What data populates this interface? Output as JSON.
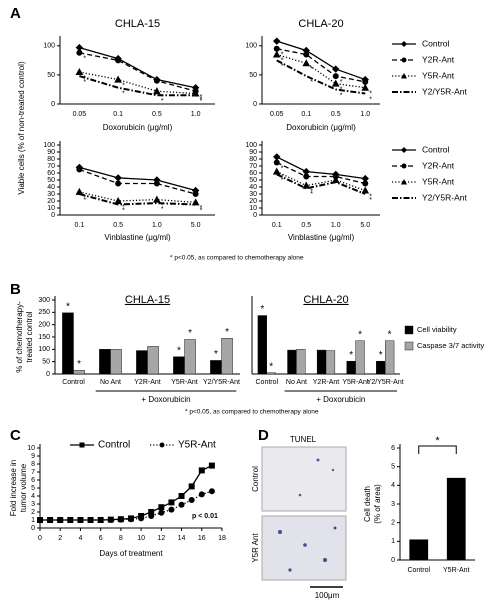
{
  "panel_labels": [
    "A",
    "B",
    "C",
    "D"
  ],
  "notes": [
    "* p<0.05, as compared to chemotherapy alone",
    "* p<0.05, as compared to chemotherapy alone"
  ],
  "tunel": {
    "title": "TUNEL",
    "rows": [
      "Control",
      "Y5R Ant"
    ],
    "scale": "100μm"
  },
  "chart_data": [
    {
      "type": "line",
      "title": "CHLA-15",
      "ylabel": "Viable cells (% of non-treated control)",
      "xlabel": "Doxorubicin (μg/ml)",
      "categories": [
        "0.05",
        "0.1",
        "0.5",
        "1.0"
      ],
      "ylim": [
        0,
        110
      ],
      "yticks": [
        0,
        50,
        100
      ],
      "series": [
        {
          "name": "Control",
          "color": "#000000",
          "style": "solid",
          "marker": "diamond",
          "values": [
            97,
            78,
            42,
            28
          ],
          "sig": [
            null,
            null,
            null,
            null
          ]
        },
        {
          "name": "Y2R-Ant",
          "color": "#000000",
          "style": "dashed",
          "marker": "circle",
          "values": [
            88,
            75,
            40,
            22
          ],
          "sig": [
            "*",
            null,
            null,
            "*"
          ]
        },
        {
          "name": "Y5R-Ant",
          "color": "#000000",
          "style": "dotted",
          "marker": "triangle",
          "values": [
            55,
            42,
            22,
            18
          ],
          "sig": [
            "*",
            "*",
            "*",
            "*"
          ]
        },
        {
          "name": "Y2/Y5R-Ant",
          "color": "#000000",
          "style": "dashdot",
          "marker": "none",
          "values": [
            48,
            28,
            15,
            15
          ],
          "sig": [
            "*",
            "*",
            "*",
            "*"
          ]
        }
      ]
    },
    {
      "type": "line",
      "title": "CHLA-20",
      "xlabel": "Doxorubicin (μg/ml)",
      "legend": "right",
      "categories": [
        "0.05",
        "0.1",
        "0.5",
        "1.0"
      ],
      "ylim": [
        0,
        110
      ],
      "yticks": [
        0,
        50,
        100
      ],
      "series": [
        {
          "name": "Control",
          "color": "#000000",
          "style": "solid",
          "marker": "diamond",
          "values": [
            108,
            92,
            60,
            42
          ],
          "sig": [
            null,
            null,
            null,
            null
          ]
        },
        {
          "name": "Y2R-Ant",
          "color": "#000000",
          "style": "dashed",
          "marker": "circle",
          "values": [
            95,
            85,
            48,
            38
          ],
          "sig": [
            "*",
            null,
            "*",
            null
          ]
        },
        {
          "name": "Y5R-Ant",
          "color": "#000000",
          "style": "dotted",
          "marker": "triangle",
          "values": [
            85,
            70,
            35,
            28
          ],
          "sig": [
            "*",
            "*",
            "*",
            "*"
          ]
        },
        {
          "name": "Y2/Y5R-Ant",
          "color": "#000000",
          "style": "dashdot",
          "marker": "none",
          "values": [
            75,
            48,
            25,
            18
          ],
          "sig": [
            "*",
            "*",
            "*",
            "*"
          ]
        }
      ]
    },
    {
      "type": "line",
      "xlabel": "Vinblastine (μg/ml)",
      "categories": [
        "0.1",
        "0.5",
        "1.0",
        "5.0"
      ],
      "ylim": [
        0,
        100
      ],
      "yticks": [
        0,
        10,
        20,
        30,
        40,
        50,
        60,
        70,
        80,
        90,
        100
      ],
      "series": [
        {
          "name": "Control",
          "color": "#000000",
          "style": "solid",
          "marker": "diamond",
          "values": [
            68,
            53,
            50,
            35
          ],
          "sig": [
            null,
            null,
            null,
            null
          ]
        },
        {
          "name": "Y2R-Ant",
          "color": "#000000",
          "style": "dashed",
          "marker": "circle",
          "values": [
            65,
            45,
            45,
            30
          ],
          "sig": [
            null,
            null,
            null,
            null
          ]
        },
        {
          "name": "Y5R-Ant",
          "color": "#000000",
          "style": "dotted",
          "marker": "triangle",
          "values": [
            33,
            20,
            22,
            18
          ],
          "sig": [
            "*",
            "*",
            "*",
            "*"
          ]
        },
        {
          "name": "Y2/Y5R-Ant",
          "color": "#000000",
          "style": "dashdot",
          "marker": "none",
          "values": [
            30,
            15,
            17,
            15
          ],
          "sig": [
            "*",
            "*",
            "*",
            "*"
          ]
        }
      ]
    },
    {
      "type": "line",
      "xlabel": "Vinblastine (μg/ml)",
      "legend": "right",
      "categories": [
        "0.1",
        "0.5",
        "1.0",
        "5.0"
      ],
      "ylim": [
        0,
        100
      ],
      "yticks": [
        0,
        10,
        20,
        30,
        40,
        50,
        60,
        70,
        80,
        90,
        100
      ],
      "series": [
        {
          "name": "Control",
          "color": "#000000",
          "style": "solid",
          "marker": "diamond",
          "values": [
            83,
            62,
            58,
            52
          ],
          "sig": [
            null,
            null,
            null,
            null
          ]
        },
        {
          "name": "Y2R-Ant",
          "color": "#000000",
          "style": "dashed",
          "marker": "circle",
          "values": [
            75,
            55,
            55,
            45
          ],
          "sig": [
            "*",
            null,
            null,
            null
          ]
        },
        {
          "name": "Y5R-Ant",
          "color": "#000000",
          "style": "dotted",
          "marker": "triangle",
          "values": [
            62,
            42,
            50,
            35
          ],
          "sig": [
            "*",
            "*",
            null,
            "*"
          ]
        },
        {
          "name": "Y2/Y5R-Ant",
          "color": "#000000",
          "style": "dashdot",
          "marker": "none",
          "values": [
            58,
            38,
            47,
            30
          ],
          "sig": [
            "*",
            "*",
            null,
            "*"
          ]
        }
      ]
    },
    {
      "type": "groupbar",
      "title": "CHLA-15",
      "ylabel": [
        "% of chemotherapy-",
        "treated control"
      ],
      "group_label": "+ Doxorubicin",
      "categories": [
        "Control",
        "No Ant",
        "Y2R-Ant",
        "Y5R-Ant",
        "Y2/Y5R-Ant"
      ],
      "ylim": [
        0,
        300
      ],
      "yticks": [
        0,
        50,
        100,
        150,
        200,
        250,
        300
      ],
      "series": [
        {
          "name": "Cell viability",
          "color": "#000000",
          "values": [
            248,
            100,
            95,
            70,
            55
          ],
          "sig": [
            "*",
            null,
            null,
            "*",
            "*"
          ]
        },
        {
          "name": "Caspase 3/7 activity",
          "color": "#a6a6a6",
          "values": [
            15,
            100,
            112,
            140,
            145
          ],
          "sig": [
            "*",
            null,
            null,
            "*",
            "*"
          ]
        }
      ]
    },
    {
      "type": "groupbar",
      "title": "CHLA-20",
      "group_label": "+ Doxorubicin",
      "legend": "right",
      "categories": [
        "Control",
        "No Ant",
        "Y2R-Ant",
        "Y5R-Ant",
        "Y2/Y5R-Ant"
      ],
      "ylim": [
        0,
        300
      ],
      "series": [
        {
          "name": "Cell viability",
          "color": "#000000",
          "values": [
            237,
            97,
            97,
            52,
            52
          ],
          "sig": [
            "*",
            null,
            null,
            "*",
            "*"
          ]
        },
        {
          "name": "Caspase 3/7 activity",
          "color": "#a6a6a6",
          "values": [
            5,
            100,
            95,
            135,
            135
          ],
          "sig": [
            "*",
            null,
            null,
            "*",
            "*"
          ]
        }
      ]
    },
    {
      "type": "xyline",
      "ylabel": [
        "Fold increase in",
        "tumor volume"
      ],
      "xlabel": "Days of treatment",
      "note": "p < 0.01",
      "legend": "top",
      "xlim": [
        0,
        18
      ],
      "xticks": [
        0,
        2,
        4,
        6,
        8,
        10,
        12,
        14,
        16,
        18
      ],
      "ylim": [
        0,
        10
      ],
      "yticks": [
        0,
        1,
        2,
        3,
        4,
        5,
        6,
        7,
        8,
        9,
        10
      ],
      "x": [
        0,
        1,
        2,
        3,
        4,
        5,
        6,
        7,
        8,
        9,
        10,
        11,
        12,
        13,
        14,
        15,
        16,
        17
      ],
      "series": [
        {
          "name": "Control",
          "color": "#000000",
          "style": "solid",
          "marker": "square",
          "values": [
            1,
            1,
            1,
            1,
            1,
            1,
            1,
            1.05,
            1.1,
            1.2,
            1.5,
            2,
            2.6,
            3.2,
            4,
            5.2,
            7.2,
            7.8
          ]
        },
        {
          "name": "Y5R-Ant",
          "color": "#000000",
          "style": "dotted",
          "marker": "circle",
          "values": [
            1,
            1,
            1,
            1,
            1,
            1,
            1,
            1,
            1.05,
            1.1,
            1.2,
            1.5,
            1.9,
            2.3,
            2.9,
            3.5,
            4.2,
            4.6
          ]
        }
      ]
    },
    {
      "type": "bar",
      "ylabel": [
        "Cell death",
        "(% of area)"
      ],
      "significance": "*",
      "categories": [
        "Control",
        "Y5R-Ant"
      ],
      "values": [
        1.1,
        4.4
      ],
      "color": "#000000",
      "ylim": [
        0,
        6
      ],
      "yticks": [
        0,
        1,
        2,
        3,
        4,
        5,
        6
      ]
    }
  ]
}
